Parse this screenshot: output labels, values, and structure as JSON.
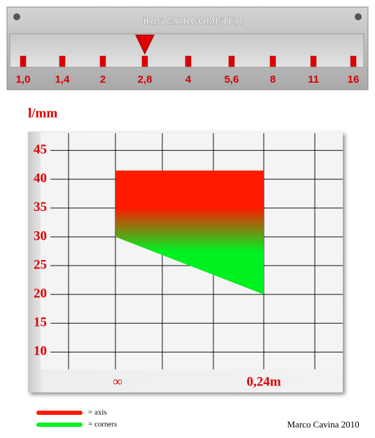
{
  "meter": {
    "title": "IRIS MARCOMETER",
    "scale": [
      "1,0",
      "1,4",
      "2",
      "2,8",
      "4",
      "5,6",
      "8",
      "11",
      "16"
    ],
    "selected": "2,8"
  },
  "chart_data": {
    "type": "area",
    "title": "l/mm",
    "categories": [
      "∞",
      "0,24m"
    ],
    "series": [
      {
        "name": "= axis",
        "color": "#ff1a00",
        "values": [
          41.5,
          41.5
        ]
      },
      {
        "name": "= corners",
        "color": "#00f020",
        "values": [
          30,
          20
        ]
      }
    ],
    "ylim": [
      7,
      48
    ],
    "yticks": [
      10,
      15,
      20,
      25,
      30,
      35,
      40,
      45
    ],
    "grid": true
  },
  "credit": "Marco Cavina 2010"
}
